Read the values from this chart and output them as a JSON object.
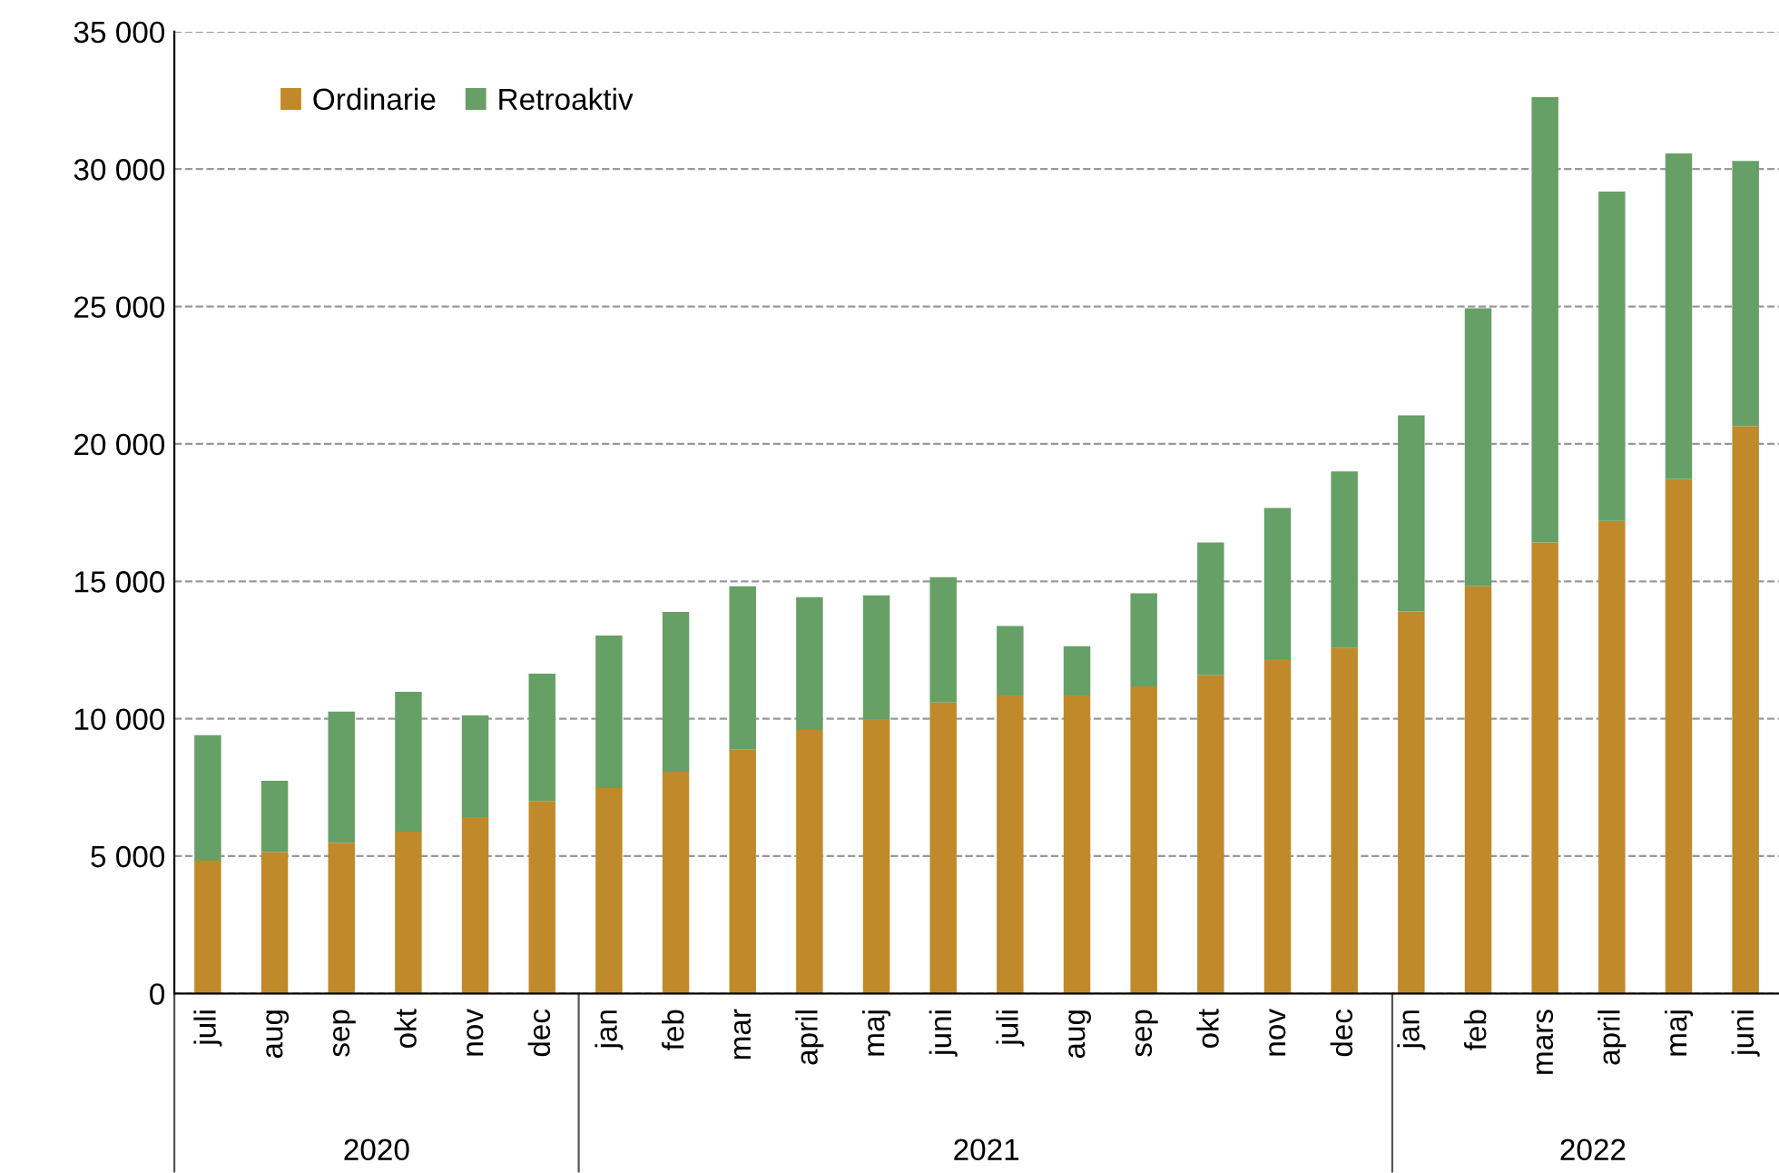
{
  "chart_data": {
    "type": "bar",
    "stacked": true,
    "categories": [
      "juli",
      "aug",
      "sep",
      "okt",
      "nov",
      "dec",
      "jan",
      "feb",
      "mar",
      "april",
      "maj",
      "juni",
      "juli",
      "aug",
      "sep",
      "okt",
      "nov",
      "dec",
      "jan",
      "feb",
      "mars",
      "april",
      "maj",
      "juni"
    ],
    "series": [
      {
        "name": "Ordinarie",
        "color": "#c0892a",
        "values": [
          4830,
          5160,
          5490,
          5890,
          6420,
          7010,
          7480,
          8070,
          8870,
          9590,
          9990,
          10590,
          10850,
          10850,
          11180,
          11580,
          12170,
          12570,
          13900,
          14820,
          16410,
          17200,
          18720,
          20640
        ]
      },
      {
        "name": "Retroaktiv",
        "color": "#66a066",
        "values": [
          4570,
          2580,
          4770,
          5090,
          3700,
          4630,
          5550,
          5820,
          5950,
          4830,
          4500,
          4560,
          2520,
          1790,
          3380,
          4830,
          5500,
          6430,
          7140,
          10120,
          16210,
          11980,
          11850,
          9660
        ]
      }
    ],
    "ylim": [
      0,
      35000
    ],
    "yticks": [
      {
        "value": 0,
        "label": "0"
      },
      {
        "value": 5000,
        "label": "5 000"
      },
      {
        "value": 10000,
        "label": "10 000"
      },
      {
        "value": 15000,
        "label": "15 000"
      },
      {
        "value": 20000,
        "label": "20 000"
      },
      {
        "value": 25000,
        "label": "25 000"
      },
      {
        "value": 30000,
        "label": "30 000"
      },
      {
        "value": 35000,
        "label": "35 000"
      }
    ],
    "grid": "y",
    "legend": "top left",
    "annotations": [
      "2020",
      "2021",
      "2022"
    ]
  }
}
